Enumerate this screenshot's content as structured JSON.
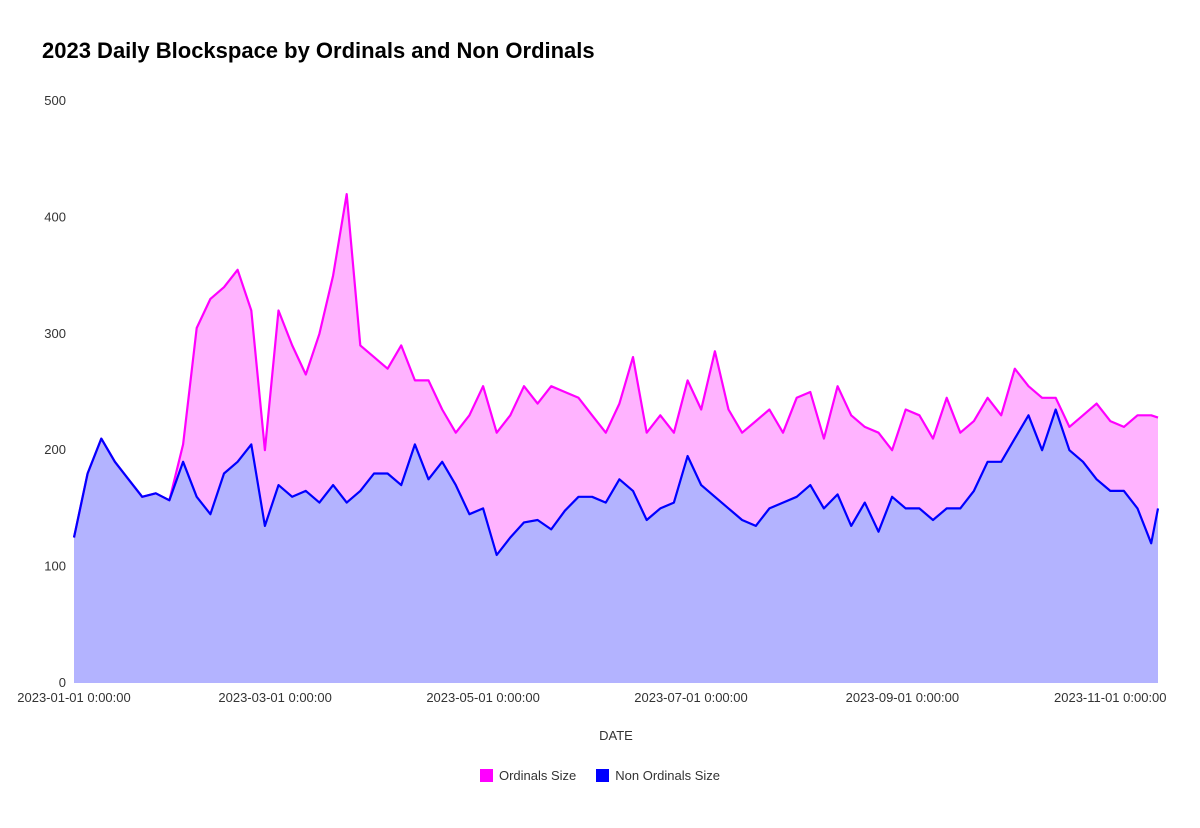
{
  "chart_data": {
    "type": "area",
    "stacked": true,
    "title": "2023 Daily Blockspace by Ordinals and Non Ordinals",
    "xlabel": "DATE",
    "ylabel": "",
    "ylim": [
      0,
      500
    ],
    "xlim": [
      "2023-01-01",
      "2023-11-15"
    ],
    "yticks": [
      0,
      100,
      200,
      300,
      400,
      500
    ],
    "xticks": [
      "2023-01-01 0:00:00",
      "2023-03-01 0:00:00",
      "2023-05-01 0:00:00",
      "2023-07-01 0:00:00",
      "2023-09-01 0:00:00",
      "2023-11-01 0:00:00"
    ],
    "grid": false,
    "legend_position": "bottom",
    "x": [
      "2023-01-01",
      "2023-01-05",
      "2023-01-09",
      "2023-01-13",
      "2023-01-17",
      "2023-01-21",
      "2023-01-25",
      "2023-01-29",
      "2023-02-02",
      "2023-02-06",
      "2023-02-10",
      "2023-02-14",
      "2023-02-18",
      "2023-02-22",
      "2023-02-26",
      "2023-03-02",
      "2023-03-06",
      "2023-03-10",
      "2023-03-14",
      "2023-03-18",
      "2023-03-22",
      "2023-03-26",
      "2023-03-30",
      "2023-04-03",
      "2023-04-07",
      "2023-04-11",
      "2023-04-15",
      "2023-04-19",
      "2023-04-23",
      "2023-04-27",
      "2023-05-01",
      "2023-05-05",
      "2023-05-09",
      "2023-05-13",
      "2023-05-17",
      "2023-05-21",
      "2023-05-25",
      "2023-05-29",
      "2023-06-02",
      "2023-06-06",
      "2023-06-10",
      "2023-06-14",
      "2023-06-18",
      "2023-06-22",
      "2023-06-26",
      "2023-06-30",
      "2023-07-04",
      "2023-07-08",
      "2023-07-12",
      "2023-07-16",
      "2023-07-20",
      "2023-07-24",
      "2023-07-28",
      "2023-08-01",
      "2023-08-05",
      "2023-08-09",
      "2023-08-13",
      "2023-08-17",
      "2023-08-21",
      "2023-08-25",
      "2023-08-29",
      "2023-09-02",
      "2023-09-06",
      "2023-09-10",
      "2023-09-14",
      "2023-09-18",
      "2023-09-22",
      "2023-09-26",
      "2023-09-30",
      "2023-10-04",
      "2023-10-08",
      "2023-10-12",
      "2023-10-16",
      "2023-10-20",
      "2023-10-24",
      "2023-10-28",
      "2023-11-01",
      "2023-11-05",
      "2023-11-09",
      "2023-11-13",
      "2023-11-15"
    ],
    "series": [
      {
        "name": "Ordinals Size",
        "line_color": "#ff00ff",
        "fill_color": "#ffb3ff",
        "values_stacked_total": [
          125,
          180,
          210,
          190,
          175,
          160,
          163,
          157,
          205,
          305,
          330,
          340,
          355,
          320,
          200,
          320,
          290,
          265,
          300,
          350,
          420,
          290,
          280,
          270,
          290,
          260,
          260,
          235,
          215,
          230,
          255,
          215,
          230,
          255,
          240,
          255,
          250,
          245,
          230,
          215,
          240,
          280,
          215,
          230,
          215,
          260,
          235,
          285,
          235,
          215,
          225,
          235,
          215,
          245,
          250,
          210,
          255,
          230,
          220,
          215,
          200,
          235,
          230,
          210,
          245,
          215,
          225,
          245,
          230,
          270,
          255,
          245,
          245,
          220,
          230,
          240,
          225,
          220,
          230,
          230,
          228
        ]
      },
      {
        "name": "Non Ordinals Size",
        "line_color": "#0000ff",
        "fill_color": "#b3b3ff",
        "values": [
          125,
          180,
          210,
          190,
          175,
          160,
          163,
          157,
          190,
          160,
          145,
          180,
          190,
          205,
          135,
          170,
          160,
          165,
          155,
          170,
          155,
          165,
          180,
          180,
          170,
          205,
          175,
          190,
          170,
          145,
          150,
          110,
          125,
          138,
          140,
          132,
          148,
          160,
          160,
          155,
          175,
          165,
          140,
          150,
          155,
          195,
          170,
          160,
          150,
          140,
          135,
          150,
          155,
          160,
          170,
          150,
          162,
          135,
          155,
          130,
          160,
          150,
          150,
          140,
          150,
          150,
          165,
          190,
          190,
          210,
          230,
          200,
          235,
          200,
          190,
          175,
          165,
          165,
          150,
          120,
          150
        ]
      }
    ]
  }
}
